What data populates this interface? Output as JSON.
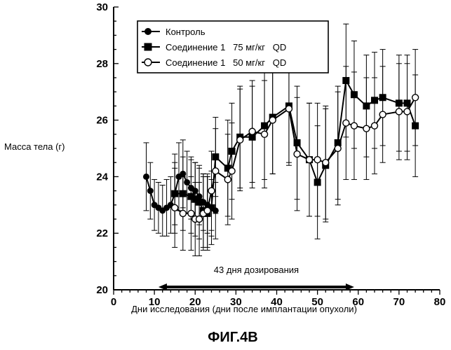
{
  "figure_caption": "ФИГ.4B",
  "chart_data": {
    "type": "line",
    "xlabel": "Дни исследования (дни после имплантации опухоли)",
    "ylabel": "Масса тела (г)",
    "xlim": [
      0,
      80
    ],
    "ylim": [
      20,
      30
    ],
    "xticks": [
      0,
      10,
      20,
      30,
      40,
      50,
      60,
      70,
      80
    ],
    "yticks": [
      20,
      22,
      24,
      26,
      28,
      30
    ],
    "grid": false,
    "legend_position": "top-left",
    "annotation": {
      "text": "43 дня дозирования",
      "x_start": 11,
      "x_end": 59,
      "y": 20.1
    },
    "series": [
      {
        "name": "Контроль",
        "marker": "filled-circle",
        "color": "#000000",
        "x": [
          8,
          9,
          10,
          11,
          12,
          13,
          14,
          15,
          16,
          17,
          18,
          19,
          20,
          21,
          22,
          23,
          24,
          25
        ],
        "y": [
          24.0,
          23.5,
          23.0,
          22.9,
          22.8,
          22.9,
          23.0,
          23.4,
          24.0,
          24.1,
          23.8,
          23.6,
          23.5,
          23.3,
          23.1,
          23.0,
          22.9,
          22.8
        ],
        "err": [
          1.2,
          1.0,
          0.9,
          0.9,
          0.9,
          1.0,
          1.0,
          1.1,
          1.2,
          1.2,
          1.1,
          1.1,
          1.0,
          1.0,
          1.0,
          1.0,
          1.0,
          1.0
        ]
      },
      {
        "name": "Соединение 1   75 мг/кг   QD",
        "marker": "filled-square",
        "color": "#000000",
        "x": [
          15,
          17,
          19,
          20,
          21,
          22,
          23,
          24,
          25,
          28,
          29,
          31,
          34,
          37,
          39,
          43,
          45,
          48,
          50,
          52,
          55,
          57,
          59,
          62,
          64,
          66,
          70,
          72,
          74
        ],
        "y": [
          23.4,
          23.4,
          23.3,
          23.2,
          23.1,
          22.8,
          22.7,
          22.9,
          24.7,
          24.3,
          24.9,
          25.4,
          25.4,
          25.8,
          26.1,
          26.5,
          25.2,
          24.6,
          23.8,
          24.4,
          25.2,
          27.4,
          26.9,
          26.5,
          26.7,
          26.8,
          26.6,
          26.6,
          25.8
        ],
        "err": [
          1.4,
          1.3,
          1.3,
          1.3,
          1.3,
          1.3,
          1.3,
          1.3,
          1.4,
          1.7,
          1.7,
          1.8,
          1.8,
          1.9,
          2.0,
          2.0,
          2.0,
          2.0,
          2.0,
          2.0,
          2.0,
          2.0,
          1.9,
          1.8,
          1.7,
          1.7,
          1.7,
          1.7,
          1.8
        ]
      },
      {
        "name": "Соединение 1   50 мг/кг   QD",
        "marker": "open-circle",
        "color": "#000000",
        "x": [
          15,
          17,
          19,
          20,
          21,
          22,
          23,
          24,
          25,
          28,
          29,
          31,
          34,
          37,
          39,
          43,
          45,
          48,
          50,
          52,
          55,
          57,
          59,
          62,
          64,
          66,
          70,
          72,
          74
        ],
        "y": [
          22.9,
          22.7,
          22.7,
          22.5,
          22.5,
          22.7,
          22.8,
          23.5,
          24.2,
          23.9,
          24.2,
          25.3,
          25.6,
          25.5,
          26.0,
          26.4,
          24.8,
          24.6,
          24.6,
          24.5,
          25.0,
          25.9,
          25.8,
          25.7,
          25.8,
          26.2,
          26.3,
          26.3,
          26.8
        ],
        "err": [
          1.4,
          1.3,
          1.3,
          1.3,
          1.3,
          1.3,
          1.3,
          1.4,
          1.5,
          1.6,
          1.7,
          1.8,
          1.8,
          1.9,
          1.9,
          2.0,
          2.0,
          2.0,
          2.0,
          2.0,
          2.0,
          2.0,
          1.9,
          1.8,
          1.7,
          1.7,
          1.7,
          1.7,
          1.7
        ]
      }
    ]
  }
}
